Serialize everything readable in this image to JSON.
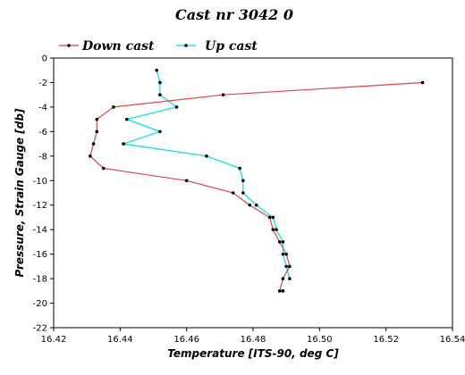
{
  "chart_data": {
    "type": "line",
    "title": "Cast nr 3042 0",
    "xlabel": "Temperature [ITS-90, deg C]",
    "ylabel": "Pressure, Strain Gauge [db]",
    "xlim": [
      16.42,
      16.54
    ],
    "ylim": [
      -22,
      0
    ],
    "xticks": [
      "16.42",
      "16.44",
      "16.46",
      "16.48",
      "16.50",
      "16.52",
      "16.54"
    ],
    "yticks": [
      "0",
      "-2",
      "-4",
      "-6",
      "-8",
      "-10",
      "-12",
      "-14",
      "-16",
      "-18",
      "-20",
      "-22"
    ],
    "grid": false,
    "legend_position": "top",
    "series": [
      {
        "name": "Down cast",
        "color": "#e34040",
        "x": [
          16.531,
          16.471,
          16.438,
          16.433,
          16.433,
          16.432,
          16.431,
          16.435,
          16.46,
          16.474,
          16.479,
          16.485,
          16.486,
          16.488,
          16.49,
          16.491,
          16.489,
          16.488,
          16.489
        ],
        "y": [
          -2,
          -3,
          -4,
          -5,
          -6,
          -7,
          -8,
          -9,
          -10,
          -11,
          -12,
          -13,
          -14,
          -15,
          -16,
          -17,
          -18,
          -19,
          -19
        ]
      },
      {
        "name": "Up cast",
        "color": "#00e0e0",
        "x": [
          16.451,
          16.452,
          16.452,
          16.457,
          16.442,
          16.452,
          16.441,
          16.466,
          16.476,
          16.477,
          16.477,
          16.481,
          16.486,
          16.487,
          16.489,
          16.489,
          16.49,
          16.491
        ],
        "y": [
          -1,
          -2,
          -3,
          -4,
          -5,
          -6,
          -7,
          -8,
          -9,
          -10,
          -11,
          -12,
          -13,
          -14,
          -15,
          -16,
          -17,
          -18
        ]
      }
    ]
  }
}
